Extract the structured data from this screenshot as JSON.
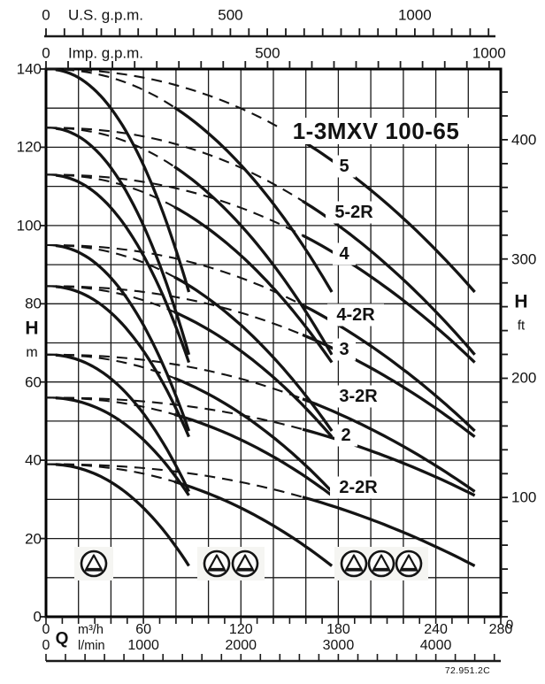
{
  "chart_data": {
    "type": "line",
    "title": "1-3MXV 100-65",
    "drawing_code": "72.951.2C",
    "x_axis_us_gpm": {
      "label": "U.S. g.p.m.",
      "tick_labels": [
        "0",
        "500",
        "1000"
      ],
      "tick_values": [
        0,
        500,
        1000
      ],
      "minor_tick_step": 50,
      "max_minor_tick": 1200
    },
    "x_axis_imp_gpm": {
      "label": "Imp. g.p.m.",
      "tick_labels": [
        "0",
        "500",
        "1000"
      ],
      "tick_values": [
        0,
        500,
        1000
      ],
      "minor_tick_step": 50,
      "max_minor_tick": 1000
    },
    "x_axis_m3h": {
      "label_q": "Q",
      "unit": "m³/h",
      "tick_labels": [
        "0",
        "60",
        "120",
        "180",
        "240",
        "280"
      ],
      "tick_values": [
        0,
        60,
        120,
        180,
        240,
        280
      ],
      "minor_tick_step": 10,
      "range": [
        0,
        280
      ],
      "gridline_step": 20
    },
    "x_axis_lmin": {
      "unit": "l/min",
      "tick_labels": [
        "0",
        "1000",
        "2000",
        "3000",
        "4000"
      ],
      "tick_values": [
        0,
        1000,
        2000,
        3000,
        4000
      ],
      "minor_tick_step": 200,
      "max_minor_tick": 4600
    },
    "y_axis_m": {
      "label": "H",
      "unit": "m",
      "tick_labels": [
        "0",
        "20",
        "40",
        "60",
        "80",
        "100",
        "120",
        "140"
      ],
      "tick_values": [
        0,
        20,
        40,
        60,
        80,
        100,
        120,
        140
      ],
      "gridline_step": 10,
      "range": [
        0,
        140
      ]
    },
    "y_axis_ft": {
      "label": "H",
      "unit": "ft",
      "tick_labels": [
        "100",
        "200",
        "300",
        "400"
      ],
      "tick_values": [
        100,
        200,
        300,
        400
      ],
      "zero_label": "0",
      "minor_tick_step": 20,
      "max_minor_tick": 440
    },
    "pump_counts_parallel": [
      1,
      2,
      3
    ],
    "q_max_per_pump_m3h": 88,
    "curve_model": "H(Q) = H0 - (H0 - Hend) * (Q / (n*88))^2.2 for n pumps in parallel; dashed = below recommended minimum flow",
    "series": [
      {
        "label": "5",
        "shutoff_head_m": 140,
        "end_head_m": 83,
        "q_ends_m3h": [
          88,
          176,
          264
        ]
      },
      {
        "label": "5-2R",
        "shutoff_head_m": 125,
        "end_head_m": 67,
        "q_ends_m3h": [
          88,
          176,
          264
        ]
      },
      {
        "label": "4",
        "shutoff_head_m": 113,
        "end_head_m": 65,
        "q_ends_m3h": [
          88,
          176,
          264
        ]
      },
      {
        "label": "4-2R",
        "shutoff_head_m": 95,
        "end_head_m": 47.5,
        "q_ends_m3h": [
          88,
          176,
          264
        ]
      },
      {
        "label": "3",
        "shutoff_head_m": 84.5,
        "end_head_m": 46,
        "q_ends_m3h": [
          88,
          176,
          264
        ]
      },
      {
        "label": "3-2R",
        "shutoff_head_m": 67,
        "end_head_m": 32,
        "q_ends_m3h": [
          88,
          176,
          264
        ]
      },
      {
        "label": "2",
        "shutoff_head_m": 56,
        "end_head_m": 31,
        "q_ends_m3h": [
          88,
          176,
          264
        ]
      },
      {
        "label": "2-2R",
        "shutoff_head_m": 39,
        "end_head_m": 13,
        "q_ends_m3h": [
          88,
          176,
          264
        ]
      }
    ],
    "pump_icon_groups": [
      {
        "name": "one-pump",
        "count": 1
      },
      {
        "name": "two-pumps",
        "count": 2
      },
      {
        "name": "three-pumps",
        "count": 3
      }
    ],
    "colors": {
      "curve": "#141414",
      "grid": "#1a1a1a",
      "background": "#ffffff"
    }
  }
}
